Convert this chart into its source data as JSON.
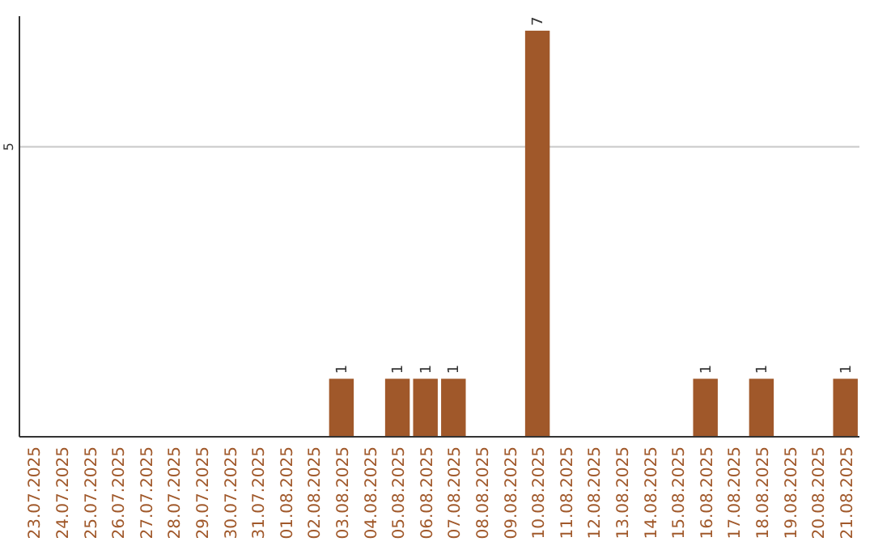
{
  "chart_data": {
    "type": "bar",
    "categories": [
      "23.07.2025",
      "24.07.2025",
      "25.07.2025",
      "26.07.2025",
      "27.07.2025",
      "28.07.2025",
      "29.07.2025",
      "30.07.2025",
      "31.07.2025",
      "01.08.2025",
      "02.08.2025",
      "03.08.2025",
      "04.08.2025",
      "05.08.2025",
      "06.08.2025",
      "07.08.2025",
      "08.08.2025",
      "09.08.2025",
      "10.08.2025",
      "11.08.2025",
      "12.08.2025",
      "13.08.2025",
      "14.08.2025",
      "15.08.2025",
      "16.08.2025",
      "17.08.2025",
      "18.08.2025",
      "19.08.2025",
      "20.08.2025",
      "21.08.2025"
    ],
    "values": [
      0,
      0,
      0,
      0,
      0,
      0,
      0,
      0,
      0,
      0,
      0,
      1,
      0,
      1,
      1,
      1,
      0,
      0,
      7,
      0,
      0,
      0,
      0,
      0,
      1,
      0,
      1,
      0,
      0,
      1
    ],
    "value_labels": [
      null,
      null,
      null,
      null,
      null,
      null,
      null,
      null,
      null,
      null,
      null,
      "1",
      null,
      "1",
      "1",
      "1",
      null,
      null,
      "7",
      null,
      null,
      null,
      null,
      null,
      "1",
      null,
      "1",
      null,
      null,
      "1"
    ],
    "color": "#a0582a",
    "ylim": [
      0,
      7.25
    ],
    "yticks": [
      5
    ],
    "grid": "y"
  }
}
